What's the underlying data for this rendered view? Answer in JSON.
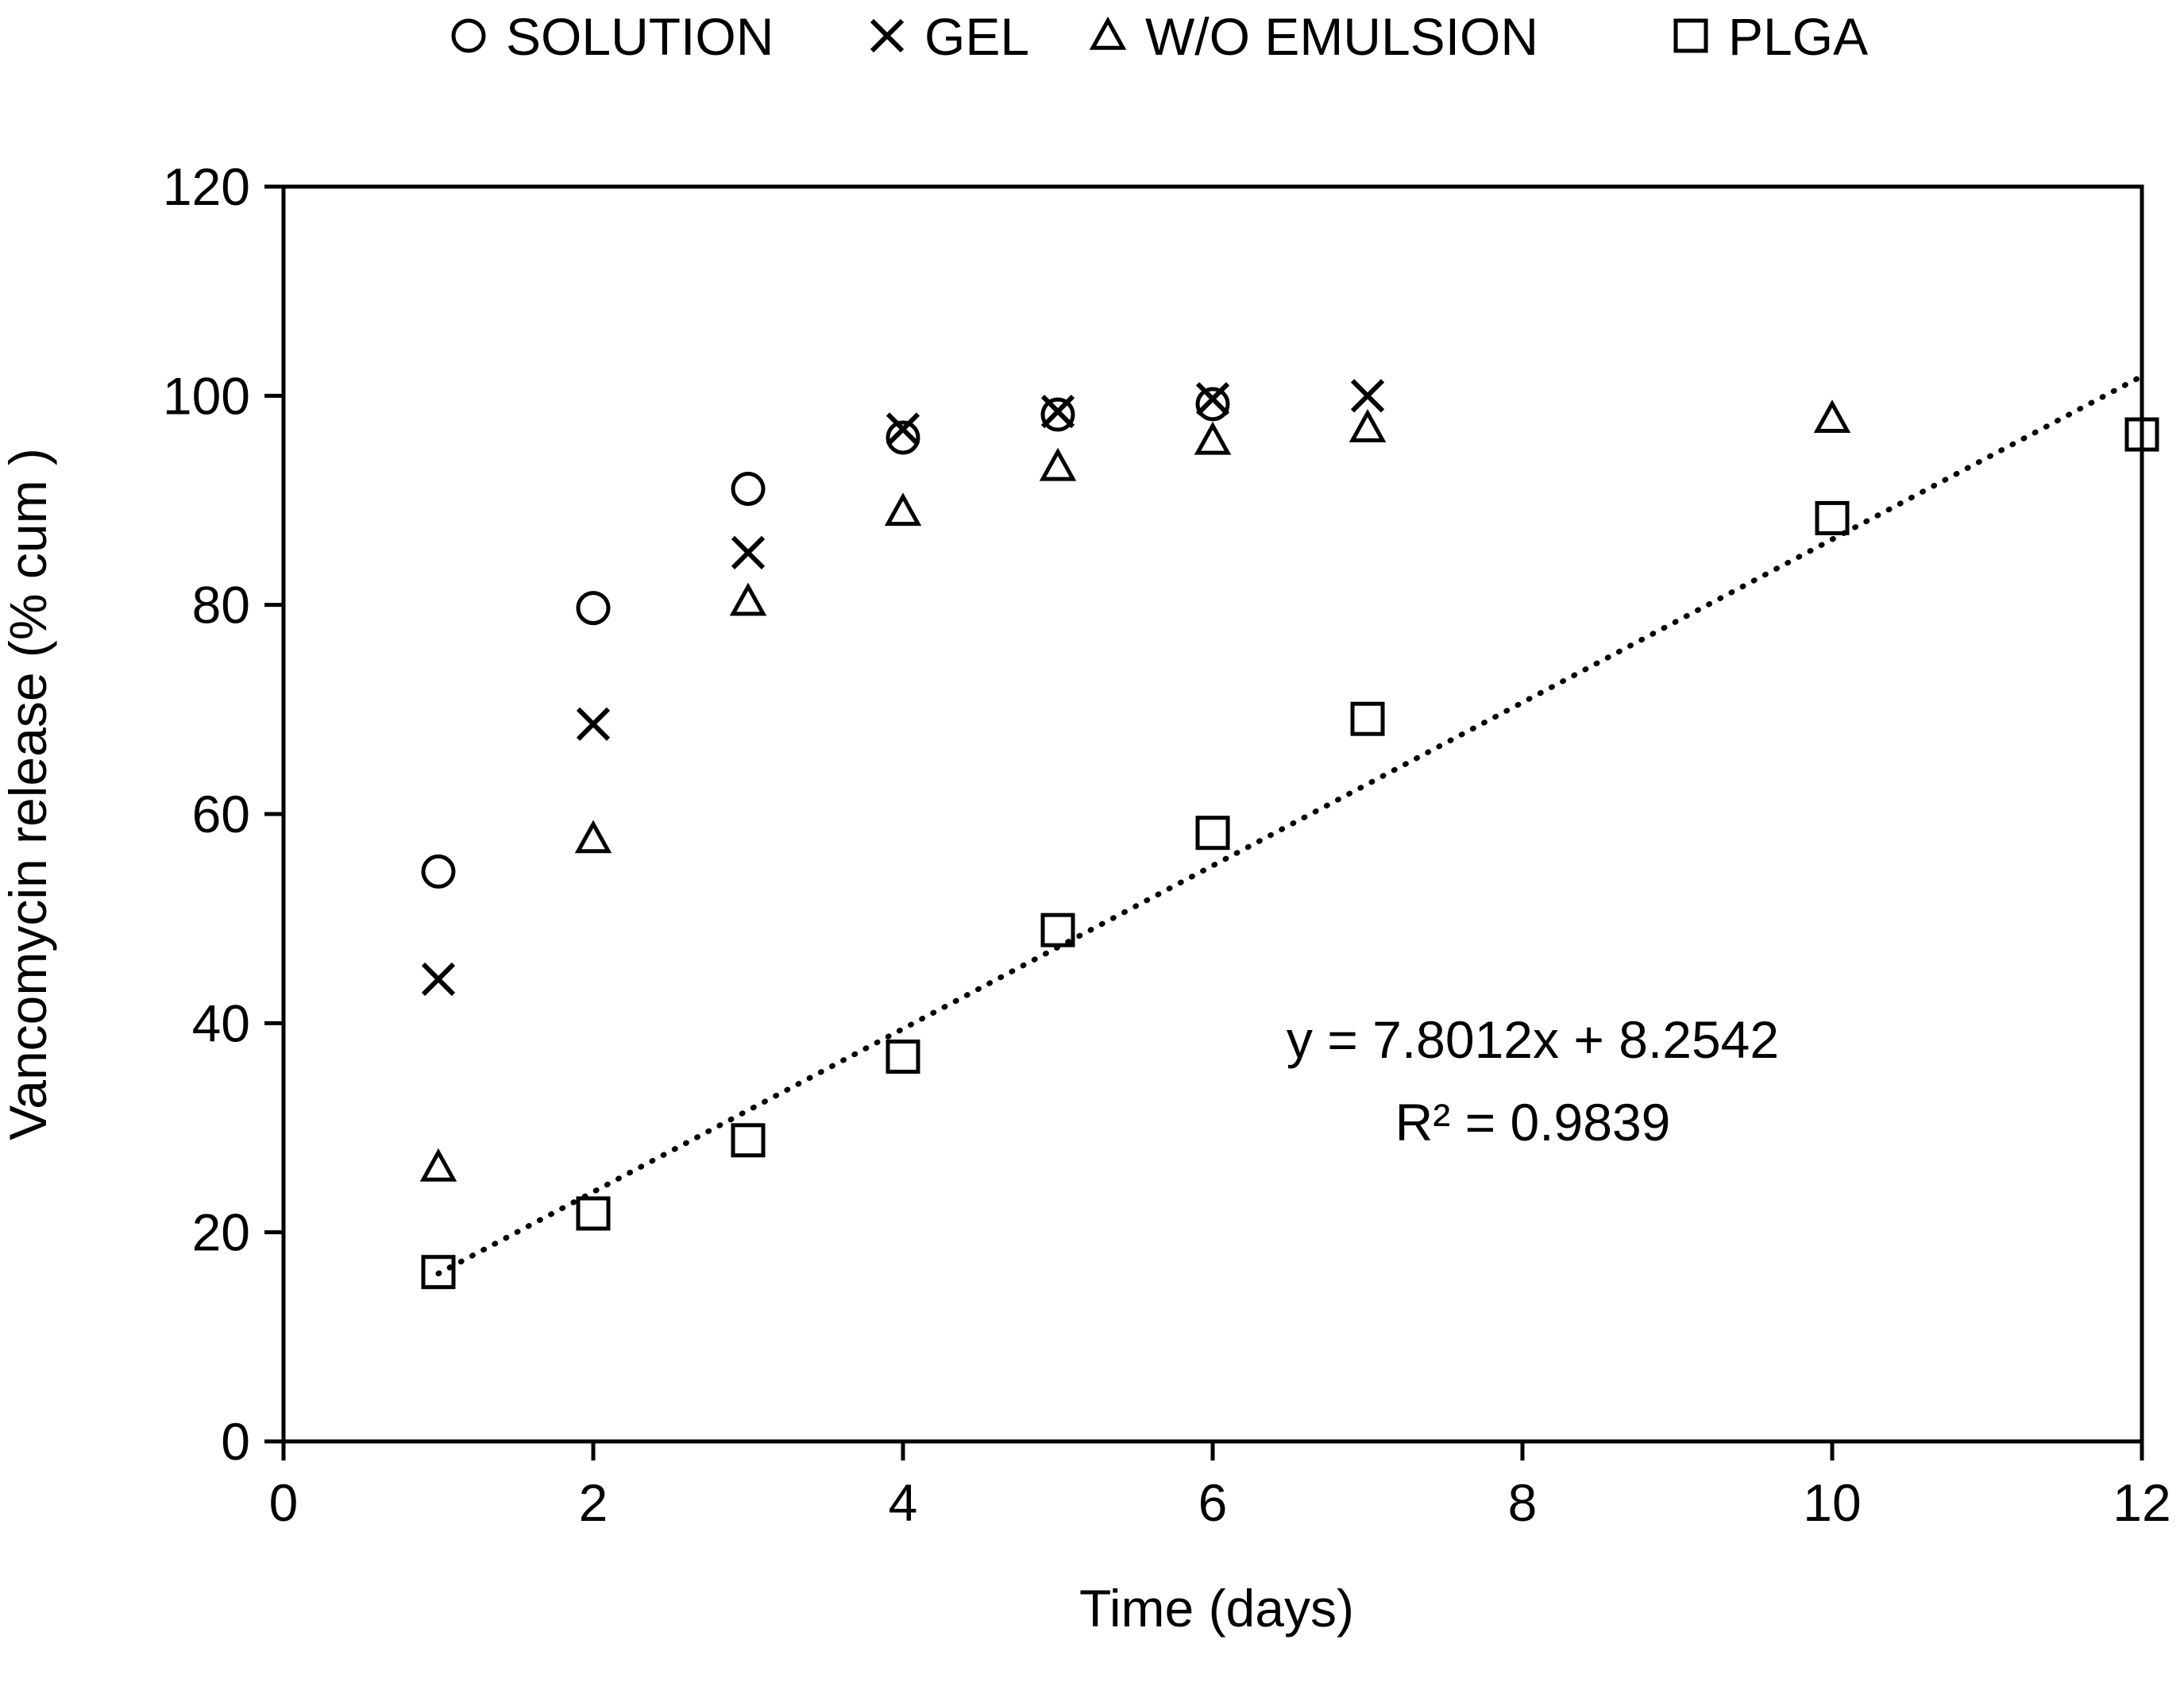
{
  "chart_data": {
    "type": "scatter",
    "title": "",
    "xlabel": "Time (days)",
    "ylabel": "Vancomycin release (% cum )",
    "xlim": [
      0,
      12
    ],
    "ylim": [
      0,
      120
    ],
    "xticks": [
      0,
      2,
      4,
      6,
      8,
      10,
      12
    ],
    "yticks": [
      0,
      20,
      40,
      60,
      80,
      100,
      120
    ],
    "grid": false,
    "legend_position": "top",
    "series": [
      {
        "name": "SOLUTION",
        "marker": "circle",
        "x": [
          1,
          2,
          3,
          4,
          5,
          6
        ],
        "y": [
          54.5,
          79.7,
          91.1,
          96.0,
          98.2,
          99.2
        ]
      },
      {
        "name": "GEL",
        "marker": "cross",
        "x": [
          1,
          2,
          3,
          4,
          5,
          6,
          7
        ],
        "y": [
          44.2,
          68.6,
          85.0,
          96.8,
          98.5,
          99.7,
          100.0
        ]
      },
      {
        "name": "W/O EMULSION",
        "marker": "triangle",
        "x": [
          1,
          2,
          3,
          4,
          5,
          6,
          7,
          10
        ],
        "y": [
          26.2,
          57.6,
          80.3,
          88.9,
          93.2,
          95.7,
          96.9,
          97.8
        ]
      },
      {
        "name": "PLGA",
        "marker": "square",
        "x": [
          1,
          2,
          3,
          4,
          5,
          6,
          7,
          10,
          12
        ],
        "y": [
          16.2,
          21.8,
          28.8,
          36.8,
          48.9,
          58.2,
          69.1,
          88.3,
          96.3
        ]
      }
    ],
    "trendline": {
      "series": "PLGA",
      "style": "dotted",
      "slope": 7.8012,
      "intercept": 8.2542,
      "x_range": [
        1,
        12
      ],
      "equation": "y = 7.8012x + 8.2542",
      "r2_text": "R² = 0.9839"
    }
  }
}
